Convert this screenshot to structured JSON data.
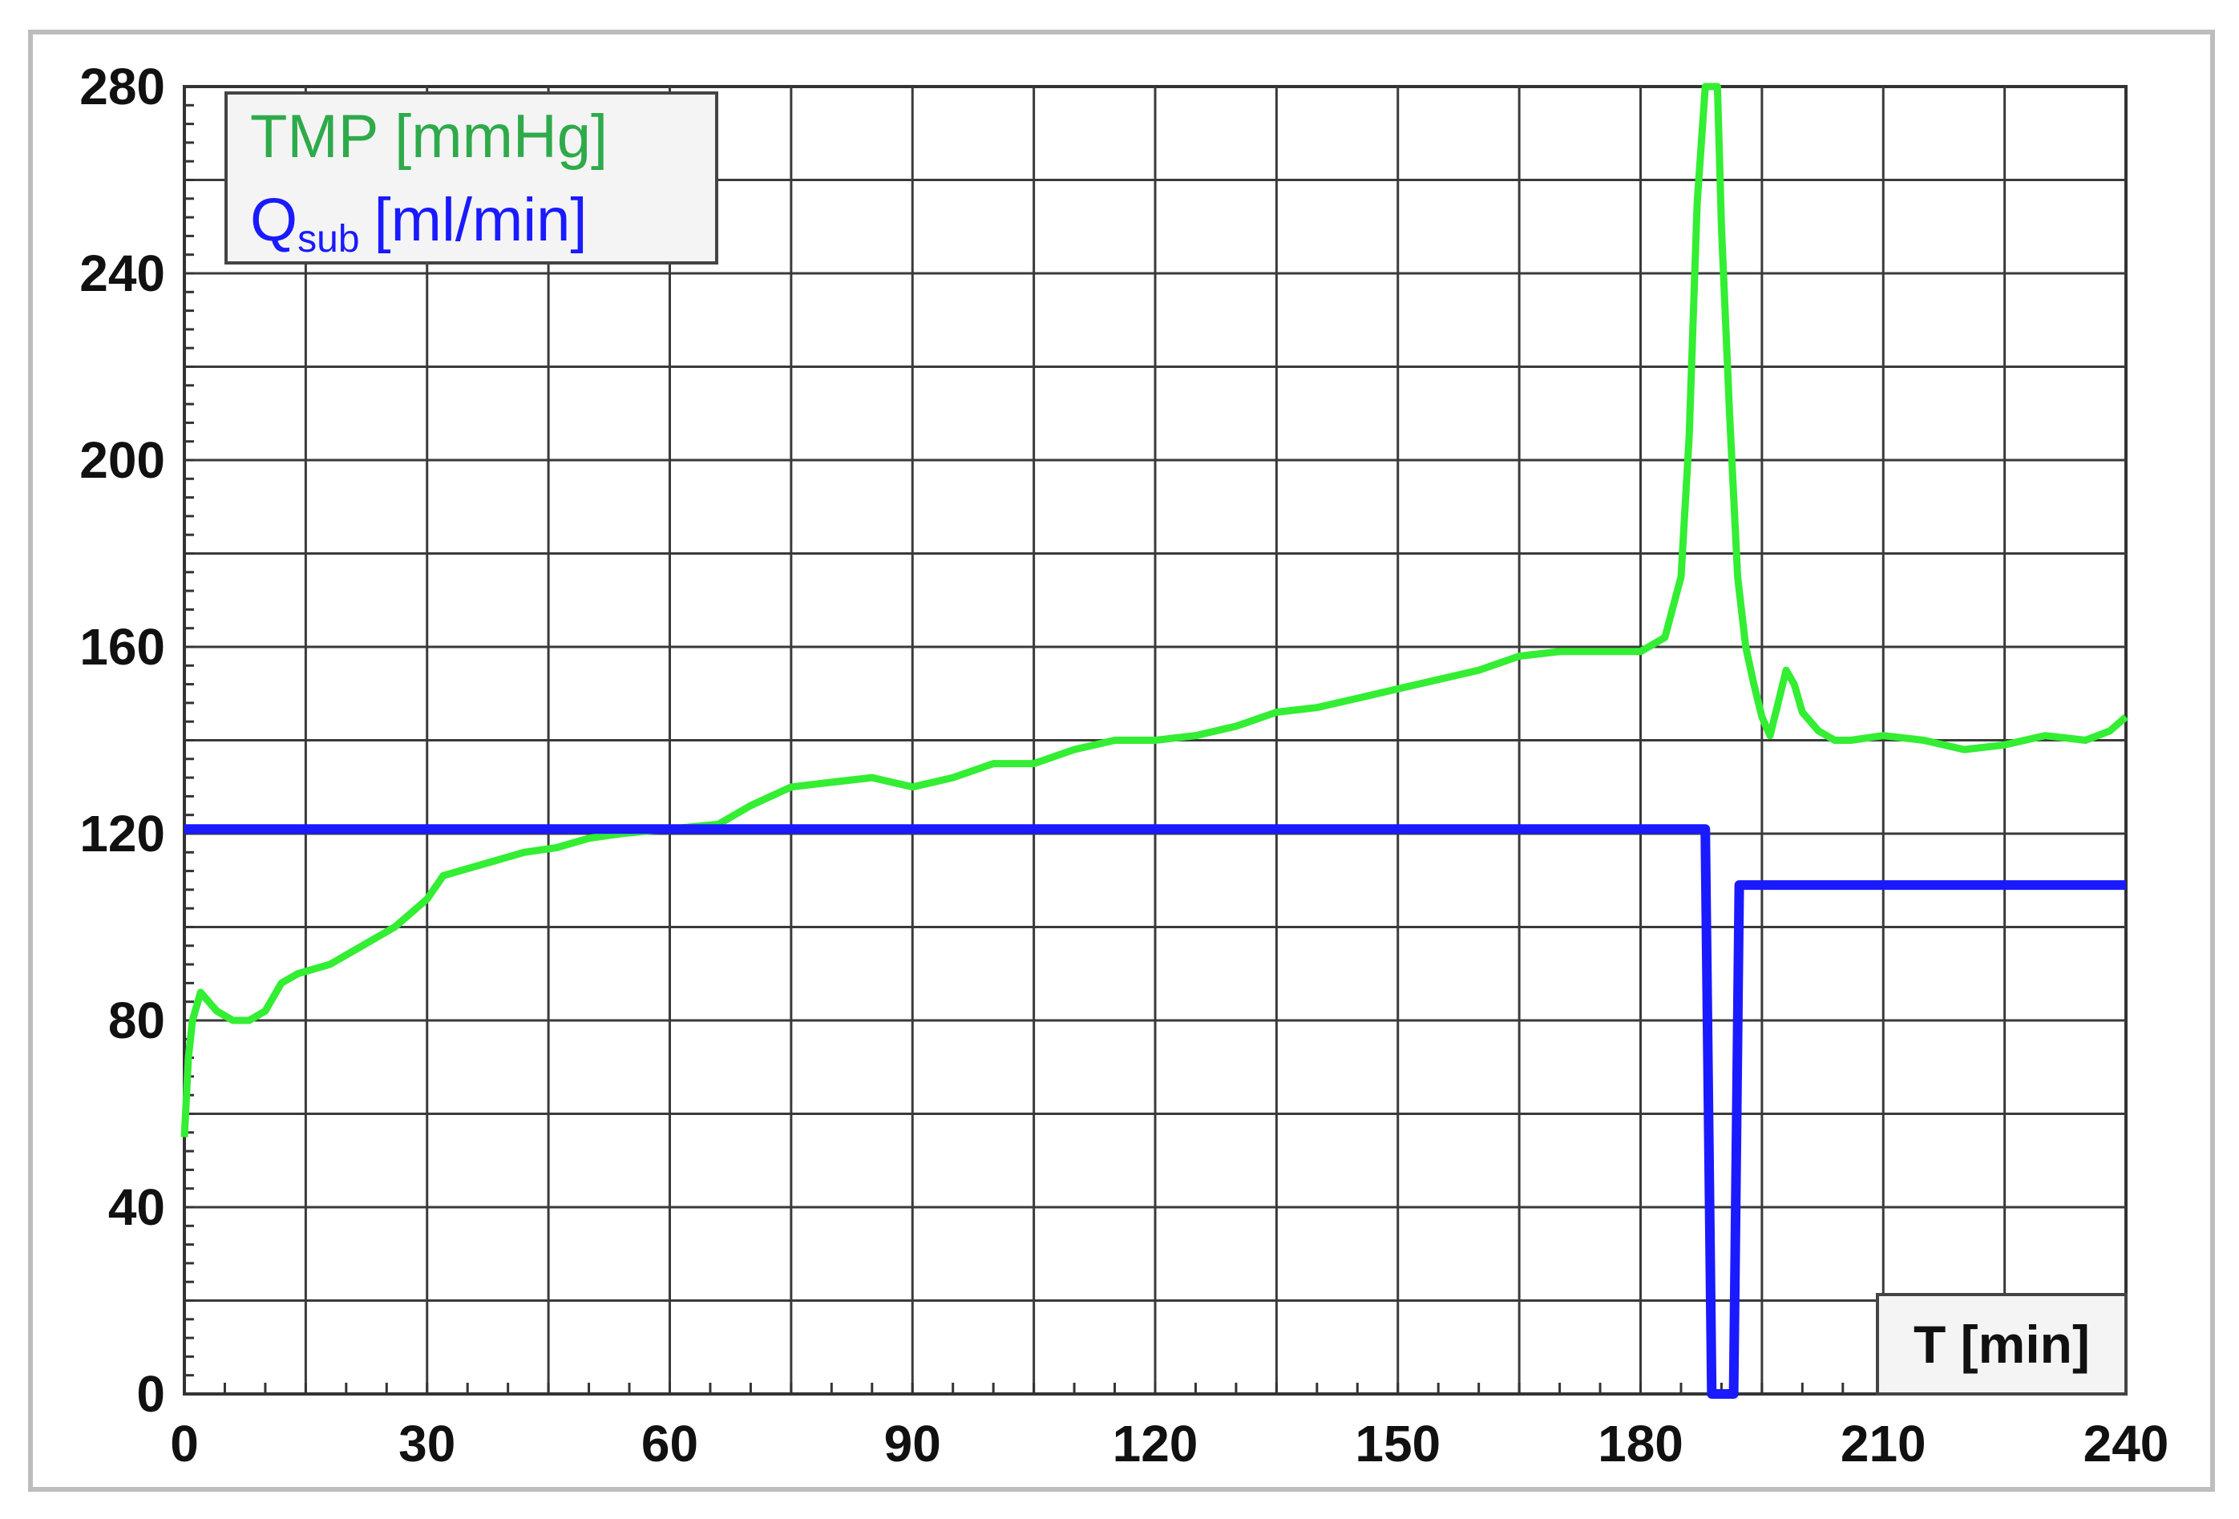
{
  "chart_data": {
    "type": "line",
    "xlabel": "T [min]",
    "ylabel": "",
    "xlim": [
      0,
      240
    ],
    "ylim": [
      0,
      280
    ],
    "x_ticks": [
      0,
      30,
      60,
      90,
      120,
      150,
      180,
      210,
      240
    ],
    "y_ticks": [
      0,
      40,
      80,
      120,
      160,
      200,
      240,
      280
    ],
    "grid": true,
    "legend_position": "top-left",
    "legend": {
      "tmp_label": "TMP [mmHg]",
      "qsub_main": "Q",
      "qsub_sub": "sub",
      "qsub_unit": "[ml/min]"
    },
    "series": [
      {
        "name": "TMP [mmHg]",
        "color": "#33ee33",
        "x": [
          0,
          0.5,
          1,
          2,
          4,
          6,
          8,
          10,
          12,
          14,
          18,
          22,
          26,
          30,
          32,
          34,
          38,
          42,
          46,
          50,
          54,
          60,
          66,
          70,
          75,
          80,
          85,
          90,
          95,
          100,
          105,
          110,
          115,
          120,
          125,
          130,
          135,
          140,
          145,
          150,
          155,
          160,
          165,
          170,
          175,
          180,
          183,
          185,
          186,
          187,
          188,
          188.5,
          189,
          189.5,
          190,
          191,
          192,
          193,
          194,
          195,
          196,
          197,
          198,
          199,
          200,
          201,
          202,
          204,
          206,
          210,
          215,
          220,
          225,
          230,
          235,
          238,
          240
        ],
        "y": [
          55,
          72,
          80,
          86,
          82,
          80,
          80,
          82,
          88,
          90,
          92,
          96,
          100,
          106,
          111,
          112,
          114,
          116,
          117,
          119,
          120,
          121,
          122,
          126,
          130,
          131,
          132,
          130,
          132,
          135,
          135,
          138,
          140,
          140,
          141,
          143,
          146,
          147,
          149,
          151,
          153,
          155,
          158,
          159,
          159,
          159,
          162,
          175,
          205,
          255,
          280,
          280,
          280,
          280,
          250,
          210,
          175,
          160,
          152,
          145,
          141,
          148,
          155,
          152,
          146,
          144,
          142,
          140,
          140,
          141,
          140,
          138,
          139,
          141,
          140,
          142,
          145
        ]
      },
      {
        "name": "Qsub [ml/min]",
        "color": "#1a1aff",
        "x": [
          0,
          188,
          188.8,
          189,
          191.5,
          192.2,
          213,
          240
        ],
        "y": [
          121,
          121,
          0,
          0,
          0,
          109,
          109,
          109
        ]
      }
    ]
  }
}
